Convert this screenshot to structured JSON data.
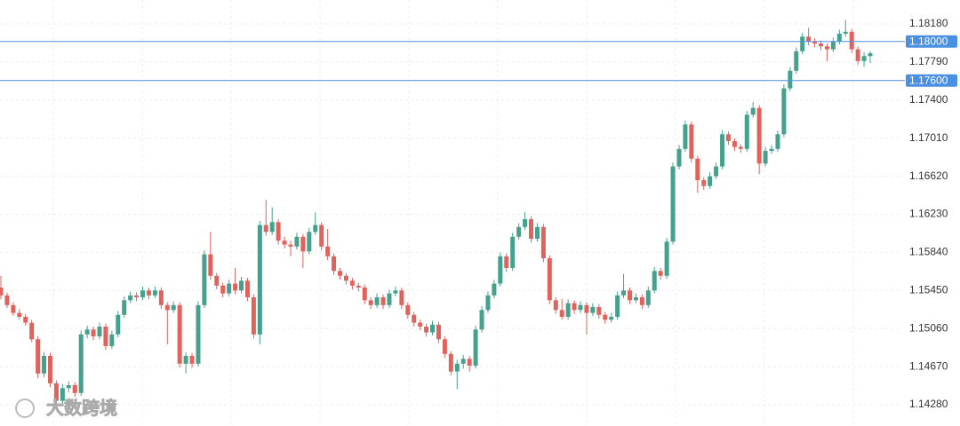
{
  "chart_data": {
    "type": "candlestick",
    "ylim": [
      1.14062,
      1.18425
    ],
    "yticks": [
      {
        "value": 1.1818,
        "label": "1.18180"
      },
      {
        "value": 1.1779,
        "label": "1.17790"
      },
      {
        "value": 1.174,
        "label": "1.17400"
      },
      {
        "value": 1.1701,
        "label": "1.17010"
      },
      {
        "value": 1.1662,
        "label": "1.16620"
      },
      {
        "value": 1.1623,
        "label": "1.16230"
      },
      {
        "value": 1.1584,
        "label": "1.15840"
      },
      {
        "value": 1.1545,
        "label": "1.15450"
      },
      {
        "value": 1.1506,
        "label": "1.15060"
      },
      {
        "value": 1.1467,
        "label": "1.14670"
      },
      {
        "value": 1.1428,
        "label": "1.14280"
      }
    ],
    "grid": true,
    "up_color": "#45a08e",
    "down_color": "#e0625c",
    "price_lines": [
      {
        "value": 1.18,
        "label": "1.18000",
        "color": "#4a90e2"
      },
      {
        "value": 1.176,
        "label": "1.17600",
        "color": "#4a90e2"
      }
    ],
    "watermark": "大数跨境",
    "values": [
      [
        1.1548,
        1.156,
        1.1536,
        1.154
      ],
      [
        1.154,
        1.1543,
        1.1527,
        1.153
      ],
      [
        1.153,
        1.1533,
        1.1519,
        1.1522
      ],
      [
        1.1522,
        1.1526,
        1.1515,
        1.1518
      ],
      [
        1.1518,
        1.1521,
        1.1509,
        1.1512
      ],
      [
        1.1512,
        1.1515,
        1.1492,
        1.1495
      ],
      [
        1.1495,
        1.1498,
        1.1455,
        1.146
      ],
      [
        1.146,
        1.1482,
        1.1456,
        1.1478
      ],
      [
        1.1478,
        1.1481,
        1.1446,
        1.145
      ],
      [
        1.145,
        1.1453,
        1.1428,
        1.1432
      ],
      [
        1.1432,
        1.1449,
        1.1429,
        1.1445
      ],
      [
        1.1445,
        1.1452,
        1.1441,
        1.1448
      ],
      [
        1.1448,
        1.1451,
        1.1436,
        1.144
      ],
      [
        1.144,
        1.1504,
        1.1437,
        1.15
      ],
      [
        1.15,
        1.1509,
        1.1496,
        1.1505
      ],
      [
        1.1505,
        1.1508,
        1.1494,
        1.1498
      ],
      [
        1.1498,
        1.1512,
        1.1495,
        1.1508
      ],
      [
        1.1508,
        1.1511,
        1.1484,
        1.1488
      ],
      [
        1.1488,
        1.1504,
        1.1485,
        1.15
      ],
      [
        1.15,
        1.1524,
        1.1497,
        1.152
      ],
      [
        1.152,
        1.1539,
        1.1517,
        1.1535
      ],
      [
        1.1535,
        1.1544,
        1.1532,
        1.154
      ],
      [
        1.154,
        1.1543,
        1.1534,
        1.1538
      ],
      [
        1.1538,
        1.1549,
        1.1535,
        1.1545
      ],
      [
        1.1545,
        1.1548,
        1.1536,
        1.154
      ],
      [
        1.154,
        1.1549,
        1.1537,
        1.1545
      ],
      [
        1.1545,
        1.1548,
        1.1526,
        1.153
      ],
      [
        1.153,
        1.1533,
        1.149,
        1.1525
      ],
      [
        1.1525,
        1.1534,
        1.1522,
        1.153
      ],
      [
        1.153,
        1.1533,
        1.1466,
        1.147
      ],
      [
        1.147,
        1.1482,
        1.146,
        1.1478
      ],
      [
        1.1478,
        1.1481,
        1.1466,
        1.147
      ],
      [
        1.147,
        1.1534,
        1.1467,
        1.153
      ],
      [
        1.153,
        1.1586,
        1.1527,
        1.1582
      ],
      [
        1.1582,
        1.1605,
        1.1556,
        1.156
      ],
      [
        1.156,
        1.1563,
        1.1546,
        1.155
      ],
      [
        1.155,
        1.1553,
        1.1538,
        1.1542
      ],
      [
        1.1542,
        1.1556,
        1.1539,
        1.1552
      ],
      [
        1.1552,
        1.1568,
        1.1541,
        1.1545
      ],
      [
        1.1545,
        1.1559,
        1.1542,
        1.1555
      ],
      [
        1.1555,
        1.1558,
        1.1534,
        1.1538
      ],
      [
        1.1538,
        1.1541,
        1.1496,
        1.15
      ],
      [
        1.15,
        1.1616,
        1.149,
        1.1612
      ],
      [
        1.1612,
        1.1638,
        1.1601,
        1.1605
      ],
      [
        1.1605,
        1.163,
        1.1602,
        1.1615
      ],
      [
        1.1615,
        1.1618,
        1.1592,
        1.1596
      ],
      [
        1.1596,
        1.16,
        1.1588,
        1.1592
      ],
      [
        1.1592,
        1.1596,
        1.158,
        1.159
      ],
      [
        1.159,
        1.1604,
        1.1587,
        1.16
      ],
      [
        1.16,
        1.1603,
        1.1568,
        1.1585
      ],
      [
        1.1585,
        1.1609,
        1.1582,
        1.1605
      ],
      [
        1.1605,
        1.1625,
        1.1602,
        1.1612
      ],
      [
        1.1612,
        1.1615,
        1.1586,
        1.159
      ],
      [
        1.159,
        1.1608,
        1.1576,
        1.158
      ],
      [
        1.158,
        1.1583,
        1.1561,
        1.1565
      ],
      [
        1.1565,
        1.1568,
        1.1556,
        1.156
      ],
      [
        1.156,
        1.1563,
        1.1551,
        1.1555
      ],
      [
        1.1555,
        1.1558,
        1.1546,
        1.155
      ],
      [
        1.155,
        1.1553,
        1.1544,
        1.1548
      ],
      [
        1.1548,
        1.1551,
        1.1531,
        1.1535
      ],
      [
        1.1535,
        1.1538,
        1.1526,
        1.153
      ],
      [
        1.153,
        1.1542,
        1.1527,
        1.1538
      ],
      [
        1.1538,
        1.1541,
        1.1526,
        1.153
      ],
      [
        1.153,
        1.1546,
        1.1527,
        1.1542
      ],
      [
        1.1542,
        1.1549,
        1.1539,
        1.1545
      ],
      [
        1.1545,
        1.1548,
        1.1526,
        1.153
      ],
      [
        1.153,
        1.1533,
        1.1516,
        1.152
      ],
      [
        1.152,
        1.1523,
        1.1508,
        1.1512
      ],
      [
        1.1512,
        1.1515,
        1.1504,
        1.1508
      ],
      [
        1.1508,
        1.1511,
        1.1498,
        1.1502
      ],
      [
        1.1502,
        1.1514,
        1.1499,
        1.151
      ],
      [
        1.151,
        1.1513,
        1.1491,
        1.1495
      ],
      [
        1.1495,
        1.1498,
        1.1476,
        1.148
      ],
      [
        1.148,
        1.1483,
        1.1458,
        1.1462
      ],
      [
        1.1462,
        1.1474,
        1.1444,
        1.147
      ],
      [
        1.147,
        1.1479,
        1.1465,
        1.1475
      ],
      [
        1.1475,
        1.1478,
        1.1462,
        1.1468
      ],
      [
        1.1468,
        1.1509,
        1.1465,
        1.1505
      ],
      [
        1.1505,
        1.1529,
        1.1502,
        1.1525
      ],
      [
        1.1525,
        1.1544,
        1.1522,
        1.154
      ],
      [
        1.154,
        1.1556,
        1.1537,
        1.1552
      ],
      [
        1.1552,
        1.1584,
        1.1549,
        1.158
      ],
      [
        1.158,
        1.1583,
        1.1564,
        1.1568
      ],
      [
        1.1568,
        1.1604,
        1.1565,
        1.16
      ],
      [
        1.16,
        1.1614,
        1.1597,
        1.161
      ],
      [
        1.161,
        1.1625,
        1.1607,
        1.1618
      ],
      [
        1.1618,
        1.1621,
        1.1594,
        1.1598
      ],
      [
        1.1598,
        1.1614,
        1.1595,
        1.161
      ],
      [
        1.161,
        1.1613,
        1.1574,
        1.1578
      ],
      [
        1.1578,
        1.1581,
        1.1531,
        1.1535
      ],
      [
        1.1535,
        1.1538,
        1.1521,
        1.1525
      ],
      [
        1.1525,
        1.1536,
        1.1515,
        1.1518
      ],
      [
        1.1518,
        1.1536,
        1.1515,
        1.1532
      ],
      [
        1.1532,
        1.1535,
        1.1521,
        1.1525
      ],
      [
        1.1525,
        1.1534,
        1.1522,
        1.153
      ],
      [
        1.153,
        1.1533,
        1.15,
        1.1522
      ],
      [
        1.1522,
        1.1532,
        1.1519,
        1.1528
      ],
      [
        1.1528,
        1.1531,
        1.1516,
        1.152
      ],
      [
        1.152,
        1.1523,
        1.1511,
        1.1515
      ],
      [
        1.1515,
        1.1522,
        1.1512,
        1.1518
      ],
      [
        1.1518,
        1.1544,
        1.1515,
        1.154
      ],
      [
        1.154,
        1.1562,
        1.1537,
        1.1545
      ],
      [
        1.1545,
        1.1548,
        1.1531,
        1.1535
      ],
      [
        1.1535,
        1.1542,
        1.1532,
        1.1538
      ],
      [
        1.1538,
        1.1541,
        1.1526,
        1.153
      ],
      [
        1.153,
        1.1549,
        1.1527,
        1.1545
      ],
      [
        1.1545,
        1.1569,
        1.1542,
        1.1565
      ],
      [
        1.1565,
        1.1568,
        1.1556,
        1.156
      ],
      [
        1.156,
        1.1599,
        1.1557,
        1.1595
      ],
      [
        1.1595,
        1.1676,
        1.1592,
        1.1672
      ],
      [
        1.1672,
        1.1694,
        1.1669,
        1.169
      ],
      [
        1.169,
        1.1719,
        1.1687,
        1.1715
      ],
      [
        1.1715,
        1.1718,
        1.1676,
        1.168
      ],
      [
        1.168,
        1.1683,
        1.1645,
        1.1658
      ],
      [
        1.1658,
        1.1661,
        1.1648,
        1.1652
      ],
      [
        1.1652,
        1.1666,
        1.1649,
        1.1662
      ],
      [
        1.1662,
        1.1676,
        1.1659,
        1.1672
      ],
      [
        1.1672,
        1.1709,
        1.1669,
        1.1705
      ],
      [
        1.1705,
        1.1708,
        1.1694,
        1.1698
      ],
      [
        1.1698,
        1.1701,
        1.1688,
        1.1692
      ],
      [
        1.1692,
        1.1695,
        1.1686,
        1.169
      ],
      [
        1.169,
        1.1729,
        1.1687,
        1.1725
      ],
      [
        1.1725,
        1.1738,
        1.1722,
        1.1732
      ],
      [
        1.1732,
        1.1735,
        1.1664,
        1.1675
      ],
      [
        1.1675,
        1.1692,
        1.1672,
        1.1688
      ],
      [
        1.1688,
        1.1694,
        1.1685,
        1.169
      ],
      [
        1.169,
        1.1709,
        1.1687,
        1.1705
      ],
      [
        1.1705,
        1.1756,
        1.1702,
        1.1752
      ],
      [
        1.1752,
        1.1774,
        1.1749,
        1.177
      ],
      [
        1.177,
        1.1794,
        1.1767,
        1.179
      ],
      [
        1.179,
        1.1809,
        1.1787,
        1.1805
      ],
      [
        1.1805,
        1.1814,
        1.1796,
        1.18
      ],
      [
        1.18,
        1.1803,
        1.1794,
        1.1798
      ],
      [
        1.1798,
        1.1801,
        1.1791,
        1.1795
      ],
      [
        1.1795,
        1.1798,
        1.178,
        1.1792
      ],
      [
        1.1792,
        1.1804,
        1.1789,
        1.18
      ],
      [
        1.18,
        1.1812,
        1.1797,
        1.1808
      ],
      [
        1.1808,
        1.1822,
        1.1805,
        1.181
      ],
      [
        1.181,
        1.1813,
        1.1788,
        1.1792
      ],
      [
        1.1792,
        1.1795,
        1.1776,
        1.178
      ],
      [
        1.178,
        1.1789,
        1.1774,
        1.1785
      ],
      [
        1.1785,
        1.179,
        1.1778,
        1.1788
      ]
    ]
  }
}
